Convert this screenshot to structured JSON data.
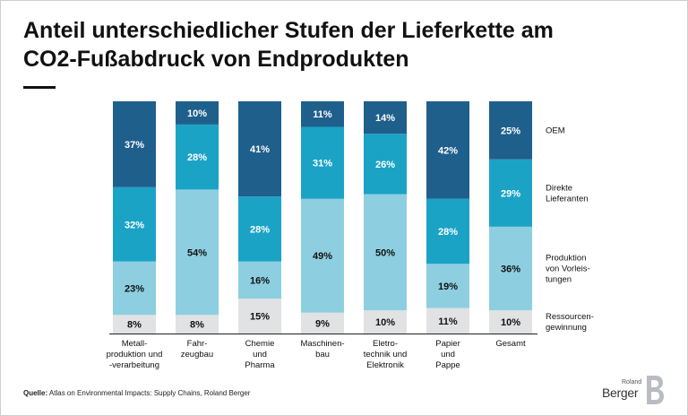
{
  "title_line1": "Anteil unterschiedlicher Stufen der Lieferkette am",
  "title_line2": "CO2-Fußabdruck von Endprodukten",
  "source_label": "Quelle:",
  "source_text": "Atlas on Environmental Impacts: Supply Chains, Roland Berger",
  "logo": {
    "small": "Roland",
    "main": "Berger",
    "mark": "B"
  },
  "colors": {
    "oem": "#1f5f8b",
    "direkte": "#1ba3c6",
    "produktion": "#8dcfe0",
    "ressourcen": "#e1e2e4",
    "text_dark": "#ffffff",
    "text_light": "#111111"
  },
  "chart_data": {
    "type": "bar",
    "stacked": true,
    "normalized": true,
    "categories": [
      [
        "Metall-",
        "produktion und",
        "-verarbeitung"
      ],
      [
        "Fahr-",
        "zeugbau"
      ],
      [
        "Chemie",
        "und",
        "Pharma"
      ],
      [
        "Maschinen-",
        "bau"
      ],
      [
        "Eletro-",
        "technik und",
        "Elektronik"
      ],
      [
        "Papier",
        "und",
        "Pappe"
      ],
      [
        "Gesamt"
      ]
    ],
    "series": [
      {
        "name": [
          "Ressourcen-",
          "gewinnung"
        ],
        "values": [
          8,
          8,
          15,
          9,
          10,
          11,
          10
        ],
        "color": "#e1e2e4"
      },
      {
        "name": [
          "Produktion",
          "von Vorleis-",
          "tungen"
        ],
        "values": [
          23,
          54,
          16,
          49,
          50,
          19,
          36
        ],
        "color": "#8dcfe0"
      },
      {
        "name": [
          "Direkte",
          "Lieferanten"
        ],
        "values": [
          32,
          28,
          28,
          31,
          26,
          28,
          29
        ],
        "color": "#1ba3c6"
      },
      {
        "name": [
          "OEM"
        ],
        "values": [
          37,
          10,
          41,
          11,
          14,
          42,
          25
        ],
        "color": "#1f5f8b"
      }
    ],
    "ylim": [
      0,
      100
    ],
    "value_suffix": "%",
    "legend_placement": "right"
  }
}
